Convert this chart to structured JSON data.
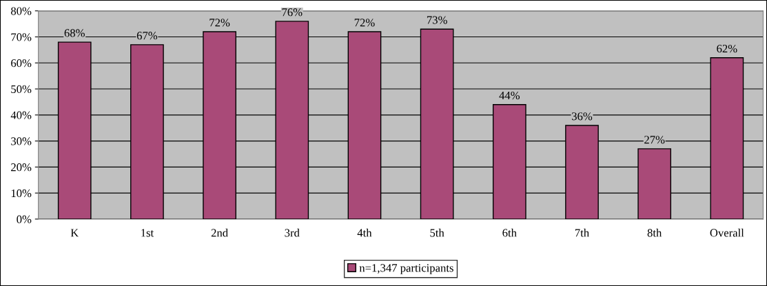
{
  "chart_data": {
    "type": "bar",
    "categories": [
      "K",
      "1st",
      "2nd",
      "3rd",
      "4th",
      "5th",
      "6th",
      "7th",
      "8th",
      "Overall"
    ],
    "series": [
      {
        "name": "n=1,347 participants",
        "color": "#a94a78",
        "values": [
          68,
          67,
          72,
          76,
          72,
          73,
          44,
          36,
          27,
          62
        ],
        "value_labels": [
          "68%",
          "67%",
          "72%",
          "76%",
          "72%",
          "73%",
          "44%",
          "36%",
          "27%",
          "62%"
        ]
      }
    ],
    "ylim": [
      0,
      80
    ],
    "yticks": [
      {
        "value": 0,
        "label": "0%"
      },
      {
        "value": 10,
        "label": "10%"
      },
      {
        "value": 20,
        "label": "20%"
      },
      {
        "value": 30,
        "label": "30%"
      },
      {
        "value": 40,
        "label": "40%"
      },
      {
        "value": 50,
        "label": "50%"
      },
      {
        "value": 60,
        "label": "60%"
      },
      {
        "value": 70,
        "label": "70%"
      },
      {
        "value": 80,
        "label": "80%"
      }
    ],
    "grid": "y",
    "legend": "bottom"
  }
}
